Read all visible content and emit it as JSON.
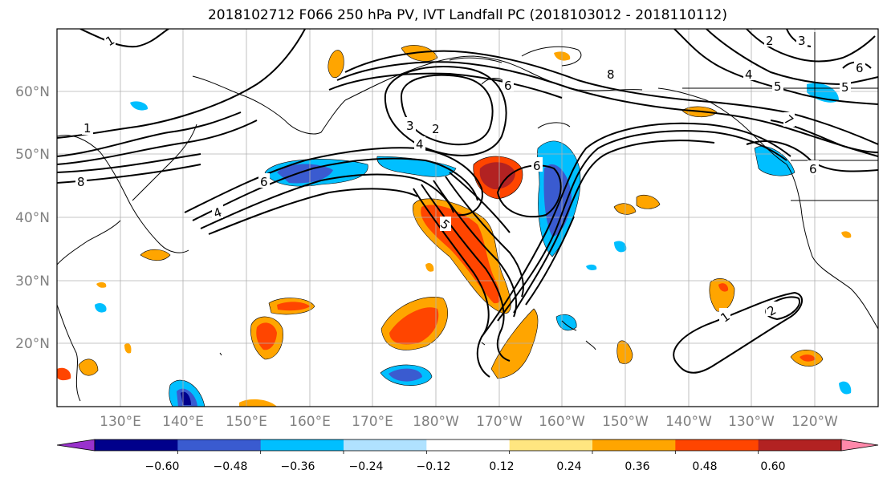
{
  "title": "2018102712 F066 250 hPa PV, IVT Landfall PC (2018103012 - 2018110112)",
  "lat_labels": [
    "60°N",
    "50°N",
    "40°N",
    "30°N",
    "20°N"
  ],
  "lon_labels": [
    "130°E",
    "140°E",
    "150°E",
    "160°E",
    "170°E",
    "180°W",
    "170°W",
    "160°W",
    "150°W",
    "140°W",
    "130°W",
    "120°W"
  ],
  "colorbar": {
    "tick_labels": [
      "−0.60",
      "−0.48",
      "−0.36",
      "−0.24",
      "−0.12",
      "0.12",
      "0.24",
      "0.36",
      "0.48",
      "0.60"
    ],
    "colors": [
      "#9932cc",
      "#00008b",
      "#3a5bd0",
      "#00bfff",
      "#b0e2ff",
      "#ffffff",
      "#ffe680",
      "#ffa500",
      "#ff4500",
      "#b22222",
      "#ff88aa"
    ]
  },
  "pv_contour_labels": [
    "1",
    "2",
    "3",
    "4",
    "5",
    "6",
    "7",
    "8"
  ]
}
